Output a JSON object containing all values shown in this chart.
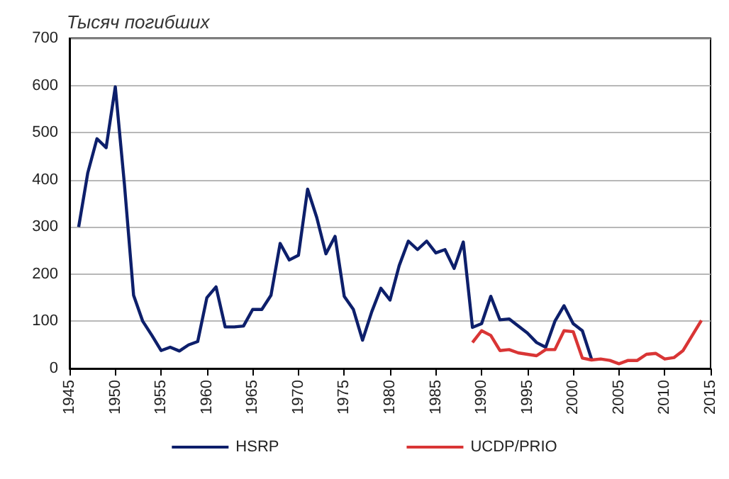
{
  "chart_data": {
    "type": "line",
    "ylabel": "Тысяч погибших",
    "x": [
      1946,
      1947,
      1948,
      1949,
      1950,
      1951,
      1952,
      1953,
      1954,
      1955,
      1956,
      1957,
      1958,
      1959,
      1960,
      1961,
      1962,
      1963,
      1964,
      1965,
      1966,
      1967,
      1968,
      1969,
      1970,
      1971,
      1972,
      1973,
      1974,
      1975,
      1976,
      1977,
      1978,
      1979,
      1980,
      1981,
      1982,
      1983,
      1984,
      1985,
      1986,
      1987,
      1988,
      1989,
      1990,
      1991,
      1992,
      1993,
      1994,
      1995,
      1996,
      1997,
      1998,
      1999,
      2000,
      2001,
      2002
    ],
    "series": [
      {
        "name": "HSRP",
        "color": "#0d1f6b",
        "values": [
          300,
          415,
          487,
          468,
          597,
          390,
          155,
          100,
          70,
          38,
          45,
          37,
          50,
          57,
          150,
          173,
          88,
          88,
          90,
          125,
          125,
          155,
          265,
          230,
          240,
          380,
          320,
          243,
          280,
          153,
          125,
          60,
          120,
          170,
          145,
          218,
          270,
          252,
          270,
          245,
          252,
          212,
          268,
          87,
          95,
          153,
          103,
          105,
          90,
          75,
          55,
          45,
          100,
          133,
          95,
          80,
          20
        ]
      },
      {
        "name": "UCDP/PRIO",
        "color": "#d93535",
        "x": [
          1989,
          1990,
          1991,
          1992,
          1993,
          1994,
          1995,
          1996,
          1997,
          1998,
          1999,
          2000,
          2001,
          2002,
          2003,
          2004,
          2005,
          2006,
          2007,
          2008,
          2009,
          2010,
          2011,
          2012,
          2013,
          2014
        ],
        "values": [
          55,
          80,
          70,
          38,
          40,
          33,
          30,
          27,
          40,
          40,
          80,
          78,
          22,
          18,
          20,
          17,
          10,
          17,
          17,
          30,
          32,
          20,
          23,
          38,
          70,
          102
        ]
      }
    ],
    "xlim": [
      1945,
      2015
    ],
    "xticks": [
      1945,
      1950,
      1955,
      1960,
      1965,
      1970,
      1975,
      1980,
      1985,
      1990,
      1995,
      2000,
      2005,
      2010,
      2015
    ],
    "ylim": [
      0,
      700
    ],
    "yticks": [
      0,
      100,
      200,
      300,
      400,
      500,
      600,
      700
    ],
    "grid": "y",
    "legend": "bottom",
    "marker": "none",
    "line_style": "solid"
  }
}
